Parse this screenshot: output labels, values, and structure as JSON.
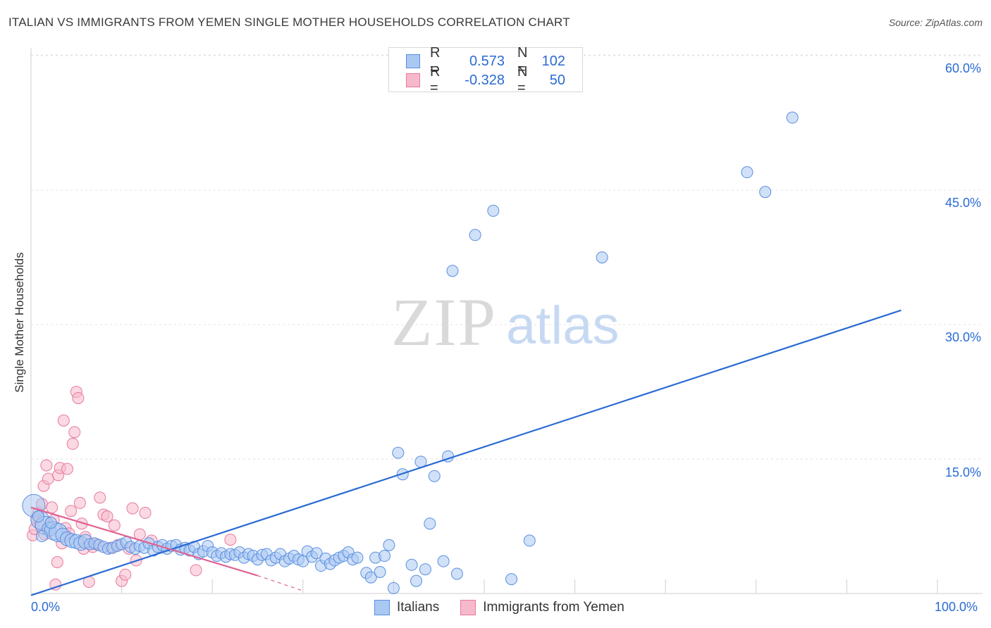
{
  "title": "ITALIAN VS IMMIGRANTS FROM YEMEN SINGLE MOTHER HOUSEHOLDS CORRELATION CHART",
  "source": "Source: ZipAtlas.com",
  "watermark": {
    "zip": "ZIP",
    "atlas": "atlas"
  },
  "legend": {
    "rows": [
      {
        "r_label": "R =",
        "r_value": "0.573",
        "n_label": "N =",
        "n_value": "102",
        "fill": "#a9c8f2",
        "stroke": "#5b8fe0"
      },
      {
        "r_label": "R =",
        "r_value": "-0.328",
        "n_label": "N =",
        "n_value": "50",
        "fill": "#f6b9cc",
        "stroke": "#e8799c"
      }
    ]
  },
  "bottom_legend": [
    {
      "label": "Italians",
      "fill": "#a9c8f2",
      "stroke": "#5b8fe0"
    },
    {
      "label": "Immigrants from Yemen",
      "fill": "#f6b9cc",
      "stroke": "#e8799c"
    }
  ],
  "chart_data": {
    "type": "scatter",
    "title": "ITALIAN VS IMMIGRANTS FROM YEMEN SINGLE MOTHER HOUSEHOLDS CORRELATION CHART",
    "xlabel": "",
    "ylabel": "Single Mother Households",
    "xlim": [
      0,
      100
    ],
    "ylim": [
      0,
      63
    ],
    "x_tick_labels": [
      "0.0%",
      "100.0%"
    ],
    "y_ticks": [
      15,
      30,
      45,
      60
    ],
    "y_tick_labels": [
      "15.0%",
      "30.0%",
      "45.0%",
      "60.0%"
    ],
    "grid": true,
    "series": [
      {
        "name": "Italians",
        "color": "#5b8fe0",
        "fill": "#a9c8f2",
        "trend": {
          "x": [
            0,
            96
          ],
          "y": [
            -0.2,
            31.6
          ],
          "color": "#2a6bd4"
        },
        "points": [
          [
            0.3,
            9.8
          ],
          [
            1,
            8.2
          ],
          [
            1.5,
            7.6
          ],
          [
            2,
            7.2
          ],
          [
            2.5,
            7.0
          ],
          [
            3,
            6.8
          ],
          [
            3.5,
            6.5
          ],
          [
            4,
            6.1
          ],
          [
            4.5,
            5.9
          ],
          [
            5,
            5.8
          ],
          [
            5.5,
            5.6
          ],
          [
            6,
            5.8
          ],
          [
            6.5,
            5.5
          ],
          [
            7,
            5.6
          ],
          [
            7.5,
            5.4
          ],
          [
            8,
            5.2
          ],
          [
            8.5,
            5.0
          ],
          [
            9,
            5.1
          ],
          [
            9.5,
            5.3
          ],
          [
            10,
            5.5
          ],
          [
            10.5,
            5.7
          ],
          [
            11,
            5.2
          ],
          [
            11.5,
            5.0
          ],
          [
            12,
            5.3
          ],
          [
            12.5,
            5.1
          ],
          [
            13,
            5.6
          ],
          [
            13.5,
            4.8
          ],
          [
            14,
            5.2
          ],
          [
            14.5,
            5.4
          ],
          [
            15,
            5.0
          ],
          [
            15.5,
            5.3
          ],
          [
            16,
            5.4
          ],
          [
            16.5,
            4.9
          ],
          [
            17,
            5.1
          ],
          [
            17.5,
            4.8
          ],
          [
            18,
            5.2
          ],
          [
            18.5,
            4.4
          ],
          [
            19,
            4.7
          ],
          [
            19.5,
            5.3
          ],
          [
            20,
            4.6
          ],
          [
            20.5,
            4.2
          ],
          [
            21,
            4.5
          ],
          [
            21.5,
            4.1
          ],
          [
            22,
            4.4
          ],
          [
            22.5,
            4.3
          ],
          [
            23,
            4.6
          ],
          [
            23.5,
            4.0
          ],
          [
            24,
            4.4
          ],
          [
            24.5,
            4.2
          ],
          [
            25,
            3.8
          ],
          [
            25.5,
            4.3
          ],
          [
            26,
            4.4
          ],
          [
            26.5,
            3.7
          ],
          [
            27,
            4.0
          ],
          [
            27.5,
            4.4
          ],
          [
            28,
            3.6
          ],
          [
            28.5,
            3.9
          ],
          [
            29,
            4.2
          ],
          [
            29.5,
            3.8
          ],
          [
            30,
            3.6
          ],
          [
            30.5,
            4.7
          ],
          [
            31,
            4.1
          ],
          [
            31.5,
            4.5
          ],
          [
            32,
            3.1
          ],
          [
            32.5,
            3.9
          ],
          [
            33,
            3.3
          ],
          [
            33.5,
            3.7
          ],
          [
            34,
            4.0
          ],
          [
            34.5,
            4.2
          ],
          [
            35,
            4.6
          ],
          [
            35.5,
            3.8
          ],
          [
            36,
            4.0
          ],
          [
            37,
            2.3
          ],
          [
            37.5,
            1.8
          ],
          [
            38,
            4.0
          ],
          [
            38.5,
            2.4
          ],
          [
            39,
            4.2
          ],
          [
            39.5,
            5.4
          ],
          [
            40,
            0.6
          ],
          [
            40.5,
            15.7
          ],
          [
            41,
            13.3
          ],
          [
            42,
            3.2
          ],
          [
            42.5,
            1.4
          ],
          [
            43,
            14.7
          ],
          [
            43.5,
            2.7
          ],
          [
            44,
            7.8
          ],
          [
            44.5,
            13.1
          ],
          [
            45.5,
            3.6
          ],
          [
            46,
            15.3
          ],
          [
            47,
            2.2
          ],
          [
            46.5,
            36.0
          ],
          [
            49,
            40.0
          ],
          [
            51,
            42.7
          ],
          [
            53,
            1.6
          ],
          [
            55,
            5.9
          ],
          [
            63,
            37.5
          ],
          [
            79,
            47.0
          ],
          [
            81,
            44.8
          ],
          [
            84,
            53.1
          ],
          [
            1.2,
            6.4
          ],
          [
            2.2,
            7.9
          ],
          [
            0.8,
            8.6
          ]
        ],
        "sizes": [
          [
            0,
            "xl"
          ],
          [
            1,
            "lg"
          ],
          [
            2,
            "lg"
          ],
          [
            3,
            "md"
          ],
          [
            4,
            "lg"
          ],
          [
            5,
            "lg"
          ],
          [
            6,
            "md"
          ],
          [
            7,
            "md"
          ],
          [
            8,
            "md"
          ],
          [
            9,
            "md"
          ],
          [
            10,
            "md"
          ],
          [
            11,
            "md"
          ]
        ]
      },
      {
        "name": "Immigrants from Yemen",
        "color": "#e8799c",
        "fill": "#f6b9cc",
        "trend": {
          "x": [
            0,
            25
          ],
          "y": [
            9.6,
            2.0
          ],
          "dash_to": [
            30,
            0.3
          ],
          "color": "#e06292"
        },
        "points": [
          [
            0.2,
            6.5
          ],
          [
            0.4,
            7.2
          ],
          [
            0.6,
            8.4
          ],
          [
            0.8,
            9.0
          ],
          [
            1.0,
            7.7
          ],
          [
            1.2,
            10.0
          ],
          [
            1.4,
            12.0
          ],
          [
            1.5,
            6.6
          ],
          [
            1.7,
            14.3
          ],
          [
            1.9,
            12.8
          ],
          [
            2.1,
            7.0
          ],
          [
            2.3,
            9.6
          ],
          [
            2.5,
            8.2
          ],
          [
            2.7,
            1.0
          ],
          [
            2.9,
            3.5
          ],
          [
            3.0,
            13.2
          ],
          [
            3.2,
            14.0
          ],
          [
            3.4,
            5.6
          ],
          [
            3.6,
            19.3
          ],
          [
            3.8,
            7.3
          ],
          [
            4.0,
            13.9
          ],
          [
            4.2,
            6.7
          ],
          [
            4.4,
            9.2
          ],
          [
            4.6,
            16.7
          ],
          [
            4.8,
            18.0
          ],
          [
            5.0,
            22.5
          ],
          [
            5.2,
            21.8
          ],
          [
            5.4,
            10.1
          ],
          [
            5.6,
            7.8
          ],
          [
            5.8,
            5.0
          ],
          [
            6.0,
            6.3
          ],
          [
            6.4,
            1.3
          ],
          [
            6.8,
            5.2
          ],
          [
            7.2,
            5.5
          ],
          [
            7.6,
            10.7
          ],
          [
            8.0,
            8.8
          ],
          [
            8.4,
            8.6
          ],
          [
            8.8,
            5.1
          ],
          [
            9.2,
            7.6
          ],
          [
            9.6,
            5.4
          ],
          [
            10.0,
            1.4
          ],
          [
            10.4,
            2.1
          ],
          [
            10.8,
            5.0
          ],
          [
            11.2,
            9.5
          ],
          [
            11.6,
            3.7
          ],
          [
            12.0,
            6.6
          ],
          [
            12.6,
            9.0
          ],
          [
            13.3,
            5.9
          ],
          [
            18.2,
            2.6
          ],
          [
            22.0,
            6.0
          ]
        ]
      }
    ]
  }
}
